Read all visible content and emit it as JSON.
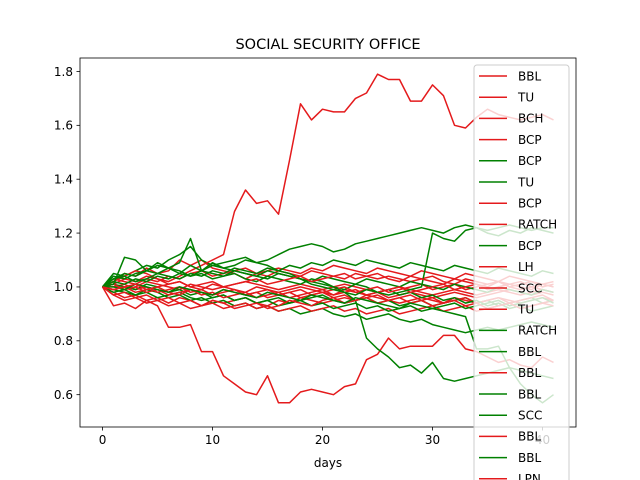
{
  "chart_data": {
    "type": "line",
    "title": "SOCIAL SECURITY OFFICE",
    "xlabel": "days",
    "ylabel": "",
    "xlim": [
      -2.05,
      43.05
    ],
    "ylim": [
      0.48,
      1.85
    ],
    "x_ticks": [
      0,
      10,
      20,
      30,
      40
    ],
    "y_ticks": [
      0.6,
      0.8,
      1.0,
      1.2,
      1.4,
      1.6,
      1.8
    ],
    "x_tick_labels": [
      "0",
      "10",
      "20",
      "30",
      "40"
    ],
    "y_tick_labels": [
      "0.6",
      "0.8",
      "1.0",
      "1.2",
      "1.4",
      "1.6",
      "1.8"
    ],
    "grid": false,
    "legend_position": "upper right",
    "colors": {
      "up": "#008000",
      "down": "#e41a1c"
    },
    "series": [
      {
        "name": "BBL",
        "color": "#e41a1c",
        "values": [
          1.0,
          1.02,
          1.05,
          1.04,
          1.07,
          1.05,
          1.06,
          1.1,
          1.08,
          1.1,
          1.07,
          1.06,
          1.05,
          1.03,
          1.05,
          1.04,
          1.06,
          1.05,
          1.04,
          1.06,
          1.05,
          1.04,
          1.03,
          1.05,
          1.04,
          1.03,
          1.04,
          1.03,
          1.02,
          1.03,
          1.04,
          1.02,
          1.01,
          1.03,
          1.02,
          1.01,
          1.02,
          1.0,
          0.99,
          1.0,
          0.99,
          0.98
        ]
      },
      {
        "name": "TU",
        "color": "#e41a1c",
        "values": [
          1.0,
          0.98,
          0.96,
          0.97,
          0.95,
          0.96,
          0.94,
          0.96,
          0.95,
          0.93,
          0.95,
          0.94,
          0.95,
          0.96,
          0.94,
          0.93,
          0.95,
          0.94,
          0.96,
          0.95,
          0.94,
          0.95,
          0.96,
          0.95,
          0.97,
          0.96,
          0.95,
          0.94,
          0.95,
          0.96,
          0.95,
          0.94,
          0.96,
          0.95,
          0.94,
          0.95,
          0.96,
          0.95,
          0.94,
          0.95,
          0.96,
          0.95
        ]
      },
      {
        "name": "BCH",
        "color": "#e41a1c",
        "values": [
          1.0,
          1.01,
          1.03,
          1.02,
          1.04,
          1.03,
          1.01,
          1.02,
          1.0,
          0.99,
          1.01,
          1.0,
          0.99,
          0.98,
          1.0,
          0.99,
          0.98,
          0.99,
          1.0,
          0.99,
          0.98,
          0.97,
          0.99,
          0.98,
          0.97,
          0.98,
          0.96,
          0.97,
          0.98,
          0.97,
          0.96,
          0.97,
          0.98,
          0.97,
          0.96,
          0.97,
          0.98,
          0.99,
          0.98,
          0.97,
          0.98,
          0.97
        ]
      },
      {
        "name": "BCP",
        "color": "#e41a1c",
        "values": [
          1.0,
          0.93,
          0.94,
          0.92,
          0.95,
          0.93,
          0.85,
          0.85,
          0.86,
          0.76,
          0.76,
          0.67,
          0.64,
          0.61,
          0.6,
          0.67,
          0.57,
          0.57,
          0.61,
          0.62,
          0.61,
          0.6,
          0.63,
          0.64,
          0.73,
          0.75,
          0.81,
          0.77,
          0.78,
          0.78,
          0.78,
          0.82,
          0.82,
          0.77,
          0.76,
          0.74,
          0.72,
          0.73,
          0.71,
          0.7,
          0.74,
          0.72
        ]
      },
      {
        "name": "BCP",
        "color": "#008000",
        "values": [
          1.0,
          1.05,
          1.04,
          1.06,
          1.08,
          1.07,
          1.1,
          1.12,
          1.15,
          1.1,
          1.08,
          1.09,
          1.1,
          1.11,
          1.09,
          1.1,
          1.12,
          1.14,
          1.15,
          1.16,
          1.15,
          1.13,
          1.14,
          1.16,
          1.17,
          1.18,
          1.19,
          1.2,
          1.21,
          1.22,
          1.21,
          1.2,
          1.22,
          1.23,
          1.22,
          1.21,
          1.22,
          1.23,
          1.22,
          1.21,
          1.22,
          1.22
        ]
      },
      {
        "name": "TU",
        "color": "#008000",
        "values": [
          1.0,
          0.99,
          0.98,
          0.97,
          0.99,
          0.98,
          0.96,
          0.97,
          0.95,
          0.96,
          0.94,
          0.95,
          0.93,
          0.94,
          0.92,
          0.93,
          0.91,
          0.92,
          0.9,
          0.91,
          0.92,
          0.9,
          0.89,
          0.9,
          0.88,
          0.89,
          0.9,
          0.88,
          0.87,
          0.88,
          0.86,
          0.85,
          0.84,
          0.83,
          0.84,
          0.85,
          0.84,
          0.85,
          0.86,
          0.87,
          0.86,
          0.85
        ]
      },
      {
        "name": "BCP",
        "color": "#e41a1c",
        "values": [
          1.0,
          1.01,
          0.99,
          1.0,
          1.02,
          1.01,
          1.0,
          0.99,
          1.01,
          1.0,
          0.99,
          1.0,
          1.01,
          1.02,
          1.01,
          1.0,
          0.99,
          1.0,
          1.01,
          1.0,
          0.99,
          1.0,
          1.01,
          1.0,
          0.99,
          0.98,
          0.99,
          1.0,
          0.99,
          0.98,
          0.97,
          0.98,
          0.99,
          0.98,
          0.97,
          0.98,
          0.99,
          0.98,
          0.97,
          0.98,
          0.99,
          0.98
        ]
      },
      {
        "name": "RATCH",
        "color": "#e41a1c",
        "values": [
          1.0,
          1.02,
          1.04,
          1.06,
          1.05,
          1.03,
          1.02,
          1.04,
          1.06,
          1.08,
          1.1,
          1.12,
          1.28,
          1.36,
          1.31,
          1.32,
          1.27,
          1.47,
          1.68,
          1.62,
          1.66,
          1.65,
          1.65,
          1.7,
          1.72,
          1.79,
          1.77,
          1.77,
          1.69,
          1.69,
          1.75,
          1.71,
          1.6,
          1.59,
          1.63,
          1.66,
          1.64,
          1.63,
          1.62,
          1.63,
          1.64,
          1.62
        ]
      },
      {
        "name": "BCP",
        "color": "#008000",
        "values": [
          1.0,
          0.98,
          0.99,
          0.97,
          0.98,
          0.96,
          0.97,
          0.98,
          0.96,
          0.95,
          0.96,
          0.97,
          0.95,
          0.96,
          0.94,
          0.95,
          0.96,
          0.94,
          0.95,
          0.96,
          0.97,
          0.95,
          0.94,
          0.95,
          0.96,
          0.94,
          0.95,
          0.93,
          0.94,
          0.95,
          0.93,
          0.94,
          0.95,
          0.96,
          0.94,
          0.95,
          0.93,
          0.94,
          0.95,
          0.96,
          0.94,
          0.95
        ]
      },
      {
        "name": "LH",
        "color": "#e41a1c",
        "values": [
          1.0,
          1.03,
          1.02,
          1.01,
          1.03,
          1.02,
          1.04,
          1.03,
          1.05,
          1.06,
          1.04,
          1.05,
          1.06,
          1.07,
          1.05,
          1.06,
          1.07,
          1.06,
          1.05,
          1.07,
          1.06,
          1.08,
          1.07,
          1.06,
          1.05,
          1.07,
          1.06,
          1.05,
          1.04,
          1.06,
          1.05,
          1.04,
          1.03,
          1.05,
          1.04,
          1.03,
          1.02,
          1.04,
          1.03,
          1.02,
          1.01,
          1.02
        ]
      },
      {
        "name": "SCC",
        "color": "#e41a1c",
        "values": [
          1.0,
          0.97,
          0.98,
          0.96,
          0.97,
          0.95,
          0.96,
          0.94,
          0.95,
          0.93,
          0.94,
          0.92,
          0.93,
          0.94,
          0.92,
          0.93,
          0.91,
          0.92,
          0.93,
          0.91,
          0.92,
          0.93,
          0.91,
          0.92,
          0.9,
          0.91,
          0.92,
          0.9,
          0.91,
          0.92,
          0.93,
          0.91,
          0.92,
          0.93,
          0.91,
          0.92,
          0.93,
          0.94,
          0.92,
          0.93,
          0.94,
          0.95
        ]
      },
      {
        "name": "TU",
        "color": "#e41a1c",
        "values": [
          1.0,
          1.0,
          1.01,
          0.99,
          1.0,
          0.98,
          0.99,
          1.0,
          0.98,
          0.99,
          0.97,
          0.98,
          0.99,
          0.97,
          0.98,
          0.96,
          0.97,
          0.98,
          0.96,
          0.97,
          0.98,
          0.96,
          0.97,
          0.95,
          0.96,
          0.97,
          0.95,
          0.96,
          0.97,
          0.95,
          0.96,
          0.94,
          0.95,
          0.96,
          0.94,
          0.95,
          0.96,
          0.94,
          0.95,
          0.96,
          0.97,
          0.95
        ]
      },
      {
        "name": "RATCH",
        "color": "#008000",
        "values": [
          1.0,
          1.03,
          1.05,
          1.04,
          1.06,
          1.05,
          1.07,
          1.06,
          1.04,
          1.05,
          1.03,
          1.04,
          1.05,
          1.03,
          1.02,
          1.04,
          1.03,
          1.02,
          1.01,
          1.03,
          1.02,
          1.0,
          0.99,
          1.01,
          1.0,
          0.98,
          0.99,
          0.97,
          0.98,
          0.96,
          0.97,
          0.95,
          0.96,
          0.94,
          0.95,
          0.93,
          0.94,
          0.92,
          0.93,
          0.91,
          0.92,
          0.93
        ]
      },
      {
        "name": "BBL",
        "color": "#008000",
        "values": [
          1.0,
          1.01,
          1.0,
          0.99,
          1.01,
          1.0,
          0.98,
          0.99,
          0.97,
          0.98,
          0.96,
          0.97,
          0.95,
          0.96,
          0.94,
          0.95,
          0.93,
          0.94,
          0.95,
          0.93,
          0.94,
          0.92,
          0.93,
          0.94,
          0.92,
          0.93,
          0.91,
          0.92,
          0.93,
          0.91,
          0.92,
          0.93,
          0.94,
          0.92,
          0.93,
          0.94,
          0.95,
          0.93,
          0.94,
          0.95,
          0.96,
          0.94
        ]
      },
      {
        "name": "BBL",
        "color": "#e41a1c",
        "values": [
          1.0,
          0.99,
          1.0,
          0.98,
          0.99,
          1.0,
          0.98,
          0.97,
          0.99,
          0.98,
          0.97,
          0.99,
          0.98,
          0.97,
          0.98,
          0.99,
          0.97,
          0.98,
          0.99,
          0.97,
          0.98,
          0.99,
          1.0,
          0.98,
          0.99,
          1.0,
          0.98,
          0.99,
          1.0,
          1.01,
          0.99,
          1.0,
          1.01,
          0.99,
          1.0,
          1.01,
          1.02,
          1.0,
          1.01,
          1.02,
          1.0,
          1.01
        ]
      },
      {
        "name": "BBL",
        "color": "#008000",
        "values": [
          1.0,
          1.02,
          1.01,
          1.03,
          1.02,
          1.04,
          1.03,
          1.05,
          1.04,
          1.06,
          1.05,
          1.04,
          1.06,
          1.05,
          1.04,
          1.03,
          1.05,
          1.04,
          1.03,
          1.02,
          1.04,
          1.03,
          1.02,
          1.01,
          1.03,
          1.02,
          1.01,
          1.0,
          1.02,
          1.01,
          1.0,
          0.99,
          1.01,
          1.0,
          0.99,
          0.98,
          1.0,
          0.99,
          0.98,
          0.97,
          0.99,
          0.98
        ]
      },
      {
        "name": "SCC",
        "color": "#008000",
        "values": [
          1.0,
          1.04,
          1.03,
          1.05,
          1.06,
          1.08,
          1.07,
          1.09,
          1.18,
          1.06,
          1.08,
          1.07,
          1.06,
          1.05,
          1.04,
          1.06,
          1.05,
          1.04,
          1.03,
          1.02,
          1.01,
          1.0,
          0.98,
          0.95,
          0.81,
          0.77,
          0.74,
          0.7,
          0.71,
          0.68,
          0.72,
          0.66,
          0.65,
          0.66,
          0.67,
          0.68,
          0.69,
          0.7,
          0.69,
          0.68,
          0.67,
          0.66
        ]
      },
      {
        "name": "BBL",
        "color": "#e41a1c",
        "values": [
          1.0,
          1.01,
          0.99,
          1.0,
          0.98,
          0.99,
          0.97,
          0.98,
          0.99,
          0.97,
          0.98,
          0.96,
          0.97,
          0.98,
          0.96,
          0.97,
          0.98,
          0.96,
          0.97,
          0.98,
          0.99,
          0.97,
          0.98,
          0.99,
          0.97,
          0.98,
          0.99,
          1.0,
          0.98,
          0.99,
          1.0,
          1.01,
          0.99,
          1.0,
          1.01,
          0.99,
          1.0,
          1.01,
          1.02,
          1.0,
          1.01,
          1.0
        ]
      },
      {
        "name": "BBL",
        "color": "#008000",
        "values": [
          1.0,
          1.03,
          1.04,
          1.02,
          1.03,
          1.05,
          1.04,
          1.03,
          1.05,
          1.04,
          1.06,
          1.05,
          1.07,
          1.06,
          1.05,
          1.07,
          1.06,
          1.08,
          1.07,
          1.09,
          1.08,
          1.1,
          1.09,
          1.08,
          1.1,
          1.09,
          1.08,
          1.07,
          1.09,
          1.08,
          1.07,
          1.06,
          1.08,
          1.07,
          1.06,
          1.05,
          1.07,
          1.06,
          1.05,
          1.04,
          1.06,
          1.05
        ]
      },
      {
        "name": "LPN",
        "color": "#e41a1c",
        "values": [
          1.0,
          0.97,
          0.95,
          0.96,
          0.94,
          0.95,
          0.93,
          0.94,
          0.92,
          0.93,
          0.95,
          0.94,
          0.92,
          0.93,
          0.94,
          0.92,
          0.93,
          0.95,
          0.94,
          0.93,
          0.95,
          0.96,
          0.94,
          0.95,
          0.96,
          0.94,
          0.95,
          0.96,
          0.94,
          0.95,
          0.93,
          0.94,
          0.95,
          0.93,
          0.94,
          0.92,
          0.93,
          0.94,
          0.92,
          0.93,
          0.94,
          0.93
        ]
      },
      {
        "name": "",
        "color": "#008000",
        "values": [
          1.0,
          1.01,
          1.11,
          1.1,
          1.06,
          1.09,
          1.07,
          1.05,
          1.08,
          1.06,
          1.09,
          1.07,
          1.08,
          1.1,
          1.09,
          1.08,
          1.06,
          1.05,
          1.03,
          1.01,
          1.0,
          0.99,
          0.98,
          0.97,
          0.99,
          0.98,
          0.97,
          0.98,
          0.99,
          1.0,
          1.2,
          1.18,
          1.17,
          1.21,
          1.22,
          1.2,
          1.19,
          1.21,
          1.2,
          1.22,
          1.21,
          1.2
        ]
      },
      {
        "name": "",
        "color": "#008000",
        "values": [
          1.0,
          1.0,
          0.99,
          1.01,
          1.0,
          0.99,
          0.98,
          1.0,
          0.99,
          0.98,
          0.97,
          0.99,
          0.98,
          0.97,
          0.96,
          0.98,
          0.97,
          0.96,
          0.95,
          0.97,
          0.96,
          0.95,
          0.94,
          0.96,
          0.95,
          0.94,
          0.93,
          0.92,
          0.94,
          0.93,
          0.92,
          0.91,
          0.9,
          0.89,
          0.77,
          0.77,
          0.78,
          0.7,
          0.64,
          0.6,
          0.57,
          0.6
        ]
      },
      {
        "name": "",
        "color": "#e41a1c",
        "values": [
          1.0,
          0.99,
          1.0,
          1.01,
          0.99,
          1.0,
          1.01,
          1.02,
          1.0,
          1.01,
          1.02,
          1.0,
          1.01,
          1.02,
          1.03,
          1.01,
          1.02,
          1.03,
          1.04,
          1.02,
          1.03,
          1.04,
          1.05,
          1.03,
          1.04,
          1.05,
          1.03,
          1.02,
          1.04,
          1.03,
          1.02,
          1.01,
          1.03,
          1.02,
          1.01,
          1.0,
          1.02,
          1.01,
          1.0,
          0.99,
          1.01,
          1.0
        ]
      }
    ]
  }
}
